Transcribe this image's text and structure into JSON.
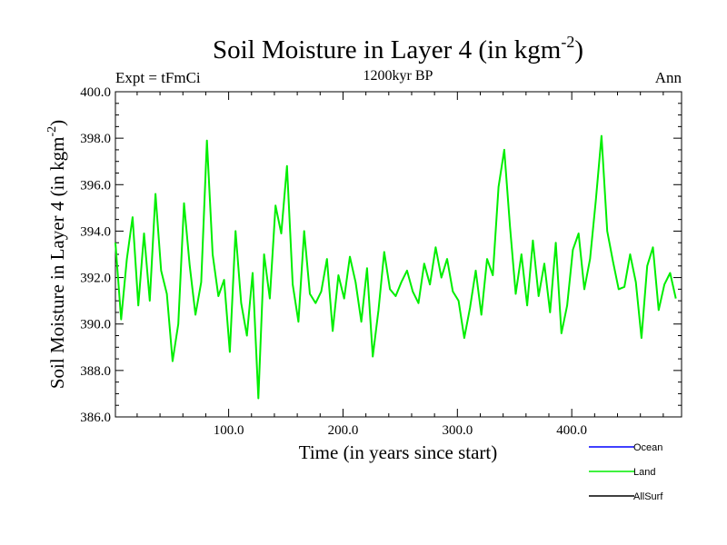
{
  "chart_data": {
    "type": "line",
    "title": "Soil Moisture in Layer 4 (in kgm",
    "title_sup": "-2",
    "title_close": ")",
    "subtitle": "1200kyr BP",
    "left_label": "Expt = tFmCi",
    "right_label": "Ann",
    "xlabel": "Time (in years since start)",
    "ylabel": "Soil Moisture in Layer 4 (in kgm",
    "ylabel_sup": "-2",
    "ylabel_close": ")",
    "xlim": [
      1,
      496
    ],
    "ylim": [
      386.0,
      400.0
    ],
    "x_ticks": [
      {
        "value": 100,
        "label": "100.0"
      },
      {
        "value": 200,
        "label": "200.0"
      },
      {
        "value": 300,
        "label": "300.0"
      },
      {
        "value": 400,
        "label": "400.0"
      }
    ],
    "y_ticks": [
      {
        "value": 386,
        "label": "386.0"
      },
      {
        "value": 388,
        "label": "388.0"
      },
      {
        "value": 390,
        "label": "390.0"
      },
      {
        "value": 392,
        "label": "392.0"
      },
      {
        "value": 394,
        "label": "394.0"
      },
      {
        "value": 396,
        "label": "396.0"
      },
      {
        "value": 398,
        "label": "398.0"
      },
      {
        "value": 400,
        "label": "400.0"
      }
    ],
    "legend": [
      {
        "name": "Ocean",
        "color": "#0000ff"
      },
      {
        "name": "Land",
        "color": "#00ee00"
      },
      {
        "name": "AllSurf",
        "color": "#000000"
      }
    ],
    "series": [
      {
        "name": "Land",
        "color": "#00ee00",
        "x_start": 1,
        "x_step": 5,
        "values": [
          393.5,
          390.2,
          392.8,
          394.6,
          390.8,
          393.9,
          391.0,
          395.6,
          392.3,
          391.3,
          388.4,
          390.0,
          395.2,
          392.5,
          390.4,
          391.8,
          397.9,
          393.0,
          391.2,
          391.9,
          388.8,
          394.0,
          390.9,
          389.5,
          392.2,
          386.8,
          393.0,
          391.1,
          395.1,
          393.9,
          396.8,
          391.7,
          390.1,
          394.0,
          391.3,
          390.9,
          391.4,
          392.8,
          389.7,
          392.1,
          391.1,
          392.9,
          391.8,
          390.1,
          392.4,
          388.6,
          390.6,
          393.1,
          391.5,
          391.2,
          391.8,
          392.3,
          391.4,
          390.9,
          392.6,
          391.7,
          393.3,
          392.0,
          392.8,
          391.4,
          391.0,
          389.4,
          390.7,
          392.3,
          390.4,
          392.8,
          392.1,
          395.9,
          397.5,
          394.2,
          391.3,
          393.0,
          390.8,
          393.6,
          391.2,
          392.6,
          390.5,
          393.5,
          389.6,
          390.8,
          393.2,
          393.9,
          391.5,
          392.8,
          395.3,
          398.1,
          394.0,
          392.7,
          391.5,
          391.6,
          393.0,
          391.8,
          389.4,
          392.5,
          393.3,
          390.6,
          391.7,
          392.2,
          391.1
        ]
      }
    ]
  }
}
